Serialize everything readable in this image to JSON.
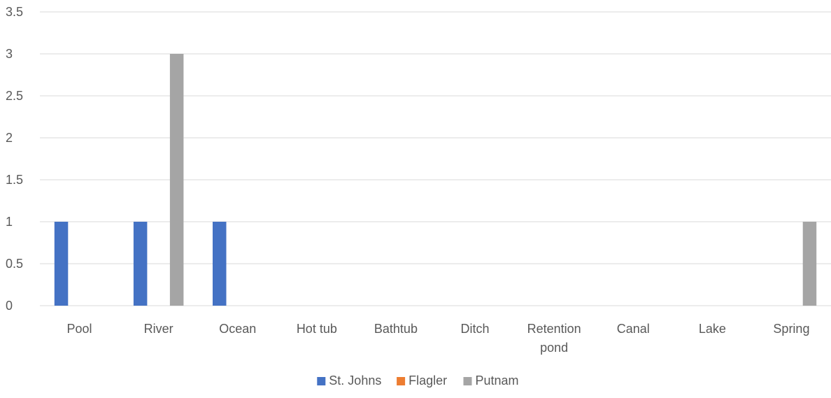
{
  "chart_data": {
    "type": "bar",
    "categories": [
      "Pool",
      "River",
      "Ocean",
      "Hot tub",
      "Bathtub",
      "Ditch",
      "Retention pond",
      "Canal",
      "Lake",
      "Spring"
    ],
    "series": [
      {
        "name": "St. Johns",
        "color": "#4472C4",
        "values": [
          1,
          1,
          1,
          0,
          0,
          0,
          0,
          0,
          0,
          0
        ]
      },
      {
        "name": "Flagler",
        "color": "#ED7D31",
        "values": [
          0,
          0,
          0,
          0,
          0,
          0,
          0,
          0,
          0,
          0
        ]
      },
      {
        "name": "Putnam",
        "color": "#A5A5A5",
        "values": [
          0,
          3,
          0,
          0,
          0,
          0,
          0,
          0,
          0,
          1
        ]
      }
    ],
    "ylim": [
      0,
      3.5
    ],
    "yticks": [
      "0",
      "0.5",
      "1",
      "1.5",
      "2",
      "2.5",
      "3",
      "3.5"
    ],
    "grid": true,
    "legend_position": "bottom",
    "gridline_color": "#D9D9D9"
  }
}
